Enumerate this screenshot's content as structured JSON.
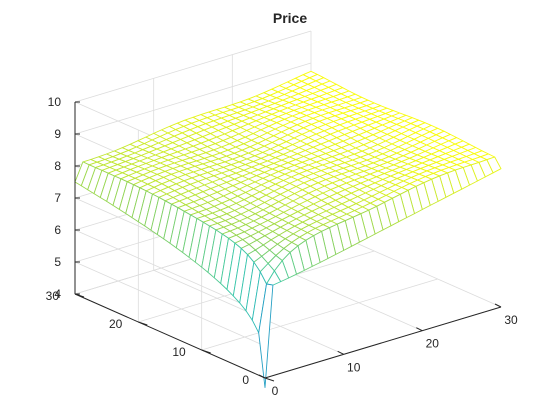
{
  "chart_data": {
    "type": "surface",
    "title": "Price",
    "xlabel": "",
    "ylabel": "",
    "zlabel": "",
    "x_range": [
      0,
      30
    ],
    "y_range": [
      0,
      30
    ],
    "z_range": [
      4,
      10
    ],
    "x_ticks": [
      "0",
      "10",
      "20",
      "30"
    ],
    "y_ticks": [
      "0",
      "10",
      "20",
      "30"
    ],
    "z_ticks": [
      "4",
      "5",
      "6",
      "7",
      "8",
      "9",
      "10"
    ],
    "grid": true,
    "colormap": "parula",
    "grid_size": [
      31,
      31
    ],
    "surface_description_values": {
      "far_plateau_level": 8.2,
      "left_edge_level": 7.5,
      "ridge_level_at_x1": [
        6.8,
        8.3
      ],
      "minimum_value": 3.7,
      "minimum_location": [
        0,
        0
      ]
    }
  },
  "colors": {
    "low": "#3E26A8",
    "mid": "#2EB8B8",
    "high": "#F9FB0E",
    "axis": "#262626",
    "grid": "#DCDCDC"
  }
}
